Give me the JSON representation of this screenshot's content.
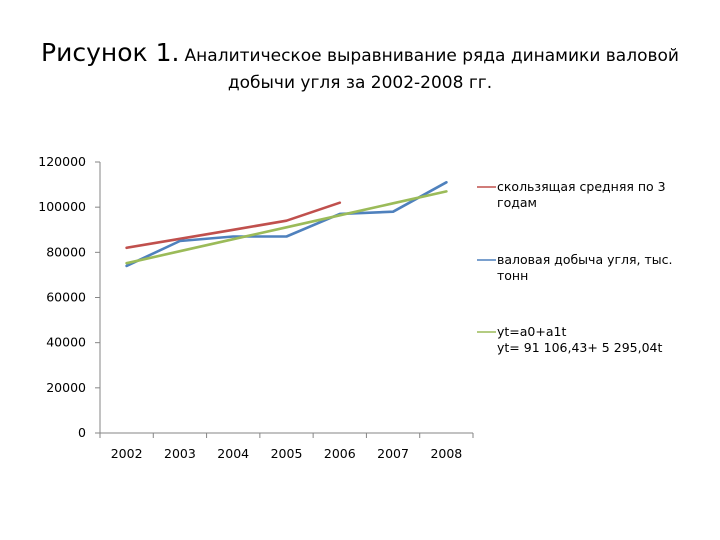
{
  "title": {
    "prefix": "Рисунок 1.",
    "line1_rest": "Аналитическое выравнивание ряда динамики валовой",
    "line2": "добычи угля за 2002-2008 гг."
  },
  "chart_data": {
    "type": "line",
    "categories": [
      "2002",
      "2003",
      "2004",
      "2005",
      "2006",
      "2007",
      "2008"
    ],
    "ylim": [
      0,
      120000
    ],
    "yticks": [
      "0",
      "20000",
      "40000",
      "60000",
      "80000",
      "100000",
      "120000"
    ],
    "grid": false,
    "legend_position": "right",
    "series": [
      {
        "name": "скользящая средняя по 3 годам",
        "legend_lines": [
          "скользящая средняя по 3",
          "годам"
        ],
        "color": "#c0504d",
        "values": [
          82000,
          86000,
          90000,
          94000,
          102000,
          null,
          null
        ]
      },
      {
        "name": "валовая добыча угля, тыс. тонн",
        "legend_lines": [
          "валовая добыча угля, тыс.",
          "тонн"
        ],
        "color": "#4f81bd",
        "values": [
          74000,
          85000,
          87000,
          87000,
          97000,
          98000,
          111000
        ]
      },
      {
        "name": "yt=a0+a1t yt= 91 106,43+ 5 295,04t",
        "legend_lines": [
          "yt=a0+a1t",
          "yt= 91 106,43+ 5 295,04t"
        ],
        "color": "#9bbb59",
        "values": [
          75200,
          80500,
          85800,
          91100,
          96400,
          101700,
          107000
        ]
      }
    ]
  }
}
